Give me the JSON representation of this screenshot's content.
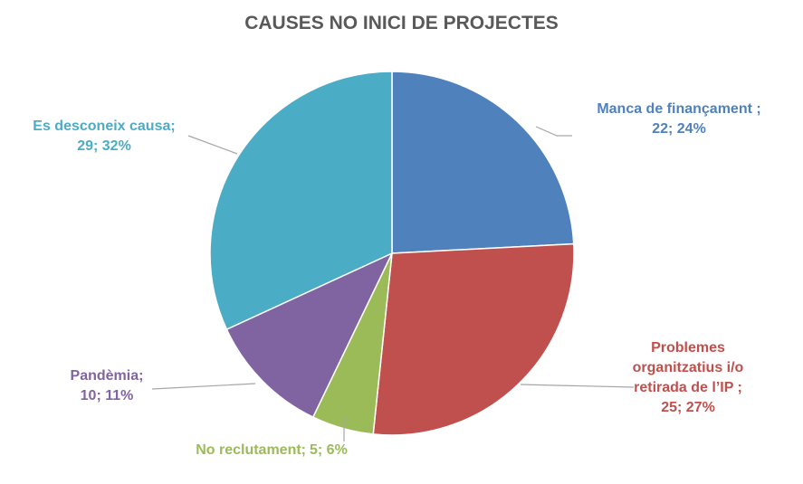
{
  "chart_data": {
    "type": "pie",
    "title": "CAUSES NO INICI DE PROJECTES",
    "categories": [
      "Manca de finançament ;",
      "Problemes organitzatius i/o retirada de l’IP ;",
      "No reclutament;",
      "Pandèmia;",
      "Es desconeix causa;"
    ],
    "values": [
      22,
      25,
      5,
      10,
      29
    ],
    "value_labels": [
      "22; 24%",
      "25; 27%",
      "5; 6%",
      "10; 11%",
      "29; 32%"
    ],
    "colors": [
      "#4f81bd",
      "#c0504d",
      "#9bbb59",
      "#8064a2",
      "#4bacc6"
    ]
  }
}
